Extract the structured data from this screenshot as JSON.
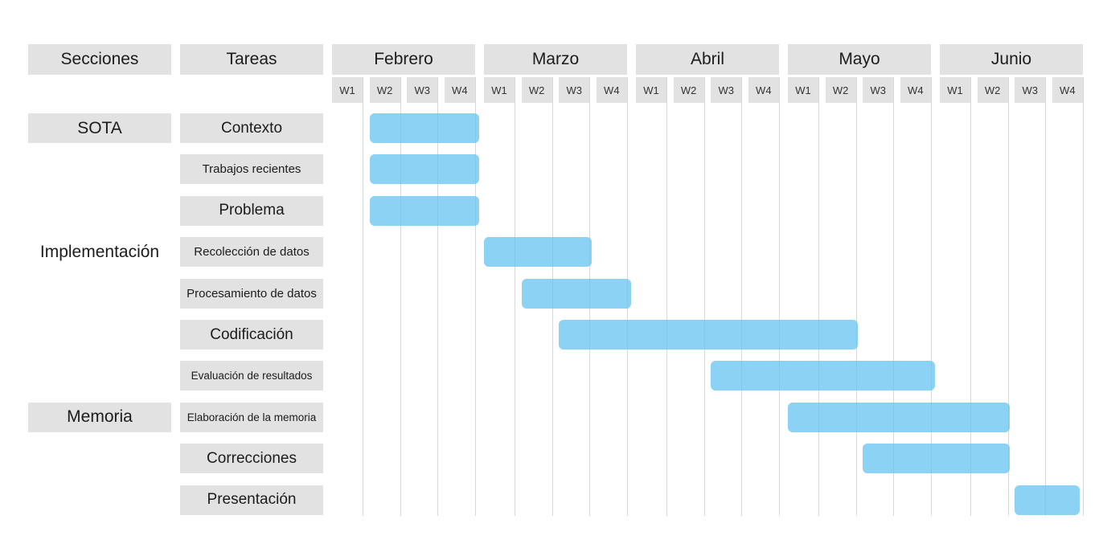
{
  "header": {
    "sections_label": "Secciones",
    "tasks_label": "Tareas"
  },
  "months": [
    "Febrero",
    "Marzo",
    "Abril",
    "Mayo",
    "Junio"
  ],
  "weeks": [
    "W1",
    "W2",
    "W3",
    "W4"
  ],
  "sections": [
    {
      "label": "SOTA",
      "row": 0
    },
    {
      "label": "Implementación",
      "row": 3
    },
    {
      "label": "Memoria",
      "row": 7
    }
  ],
  "tasks": [
    {
      "label": "Contexto",
      "start_week": 1,
      "end_week": 4
    },
    {
      "label": "Trabajos recientes",
      "start_week": 1,
      "end_week": 4
    },
    {
      "label": "Problema",
      "start_week": 1,
      "end_week": 4
    },
    {
      "label": "Recolección de datos",
      "start_week": 4,
      "end_week": 7
    },
    {
      "label": "Procesamiento de datos",
      "start_week": 5,
      "end_week": 8
    },
    {
      "label": "Codificación",
      "start_week": 6,
      "end_week": 14
    },
    {
      "label": "Evaluación de resultados",
      "start_week": 10,
      "end_week": 16
    },
    {
      "label": "Elaboración de la memoria",
      "start_week": 12,
      "end_week": 18
    },
    {
      "label": "Correcciones",
      "start_week": 14,
      "end_week": 18
    },
    {
      "label": "Presentación",
      "start_week": 18,
      "end_week": 20
    }
  ],
  "colors": {
    "bar": "#64c3f0",
    "header_bg": "#e2e2e2",
    "grid": "#d8d8d8"
  }
}
